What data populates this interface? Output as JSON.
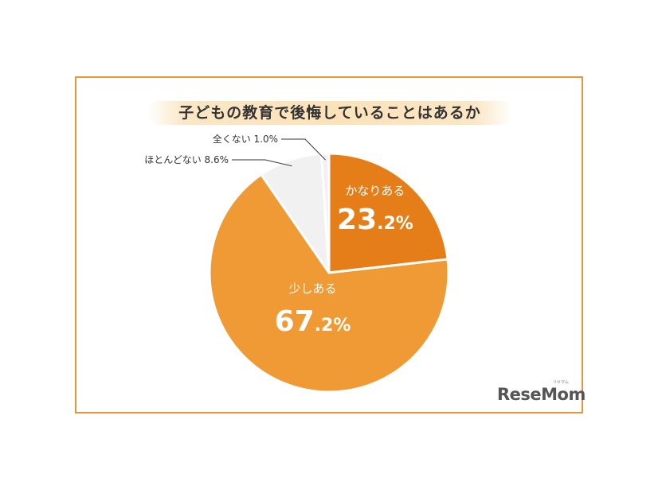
{
  "chart_data": {
    "type": "pie",
    "title": "子どもの教育で後悔していることはあるか",
    "slices": [
      {
        "label": "かなりある",
        "value": 23.2,
        "color": "#e57e19"
      },
      {
        "label": "少しある",
        "value": 67.2,
        "color": "#f09a36"
      },
      {
        "label": "ほとんどない",
        "value": 8.6,
        "color": "#f1f1f1"
      },
      {
        "label": "全くない",
        "value": 1.0,
        "color": "#f1f1f1"
      }
    ],
    "data_labels": [
      {
        "name": "かなりある",
        "number": "23",
        "suffix": ".2%"
      },
      {
        "name": "少しある",
        "number": "67",
        "suffix": ".2%"
      },
      {
        "name": "ほとんどない",
        "text": "ほとんどない 8.6%"
      },
      {
        "name": "全くない",
        "text": "全くない 1.0%"
      }
    ]
  },
  "logo": {
    "text": "ReseMom",
    "ruby": "リセマム"
  },
  "colors": {
    "frame": "#e8953a",
    "accent": "#e57e19"
  }
}
